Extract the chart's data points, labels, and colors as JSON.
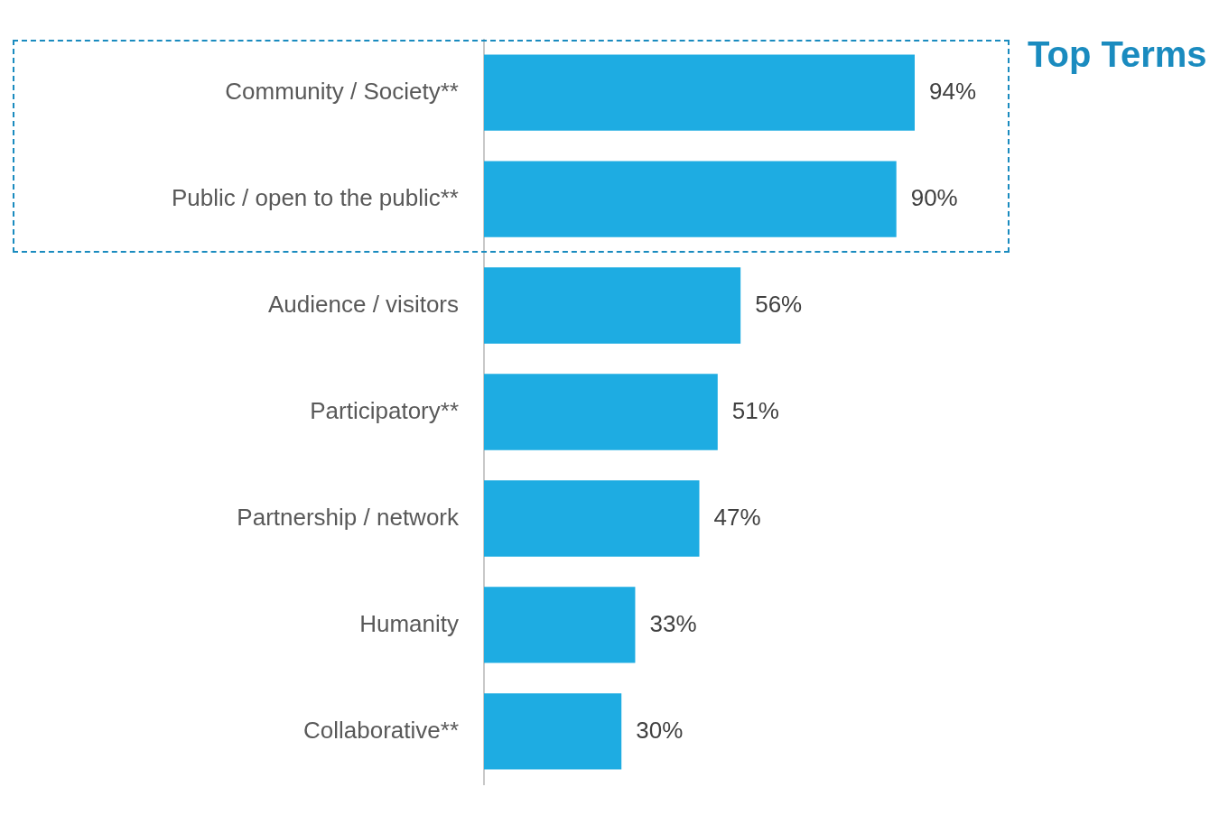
{
  "chart_data": {
    "type": "bar",
    "orientation": "horizontal",
    "categories": [
      "Community / Society**",
      "Public / open to the public**",
      "Audience / visitors",
      "Participatory**",
      "Partnership / network",
      "Humanity",
      "Collaborative**"
    ],
    "values": [
      94,
      90,
      56,
      51,
      47,
      33,
      30
    ],
    "value_labels": [
      "94%",
      "90%",
      "56%",
      "51%",
      "47%",
      "33%",
      "30%"
    ],
    "color": "#1eace2",
    "tick_labels": "y",
    "annotations": [
      "Top Terms"
    ]
  }
}
